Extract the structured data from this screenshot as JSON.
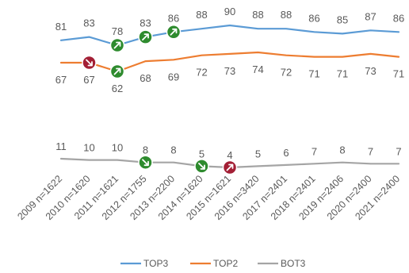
{
  "chart_data": {
    "type": "line",
    "categories": [
      "2009 n=1622",
      "2010 n=1620",
      "2011 n=1621",
      "2012 n=1755",
      "2013 n=2200",
      "2014 n=1620",
      "2015 n=1621",
      "2016 n=3420",
      "2017 n=2401",
      "2018 n=2401",
      "2019 n=2406",
      "2020 n=2400",
      "2021 n=2400"
    ],
    "series": [
      {
        "name": "TOP3",
        "color": "#5B9BD5",
        "values": [
          81,
          83,
          78,
          83,
          86,
          88,
          90,
          88,
          88,
          86,
          85,
          87,
          86
        ]
      },
      {
        "name": "TOP2",
        "color": "#ED7D31",
        "values": [
          67,
          67,
          62,
          68,
          69,
          72,
          73,
          74,
          72,
          71,
          71,
          73,
          71
        ]
      },
      {
        "name": "BOT3",
        "color": "#A5A5A5",
        "values": [
          11,
          10,
          10,
          8,
          8,
          5,
          4,
          5,
          6,
          7,
          8,
          7,
          7
        ]
      }
    ],
    "markers": [
      {
        "series": "TOP3",
        "index": 2,
        "direction": "up",
        "color": "#2E8B2E"
      },
      {
        "series": "TOP3",
        "index": 3,
        "direction": "up",
        "color": "#2E8B2E"
      },
      {
        "series": "TOP3",
        "index": 4,
        "direction": "up",
        "color": "#2E8B2E"
      },
      {
        "series": "TOP2",
        "index": 1,
        "direction": "down",
        "color": "#A31F35"
      },
      {
        "series": "TOP2",
        "index": 2,
        "direction": "up",
        "color": "#2E8B2E"
      },
      {
        "series": "BOT3",
        "index": 3,
        "direction": "down",
        "color": "#2E8B2E"
      },
      {
        "series": "BOT3",
        "index": 5,
        "direction": "down",
        "color": "#2E8B2E"
      },
      {
        "series": "BOT3",
        "index": 6,
        "direction": "up",
        "color": "#A31F35"
      }
    ],
    "legend": {
      "position": "bottom",
      "entries": [
        "TOP3",
        "TOP2",
        "BOT3"
      ]
    },
    "grid": false
  }
}
